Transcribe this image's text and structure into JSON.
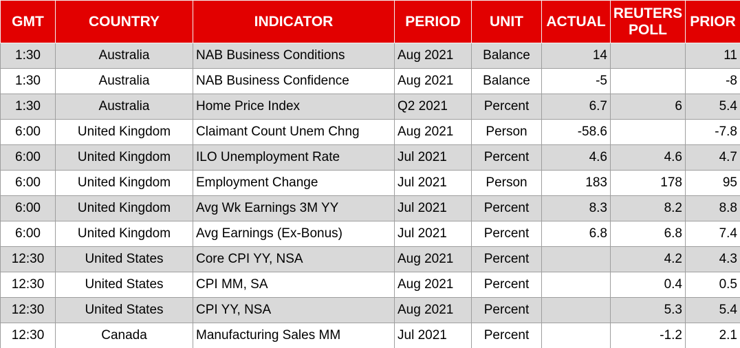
{
  "table": {
    "header": [
      "GMT",
      "COUNTRY",
      "INDICATOR",
      "PERIOD",
      "UNIT",
      "ACTUAL",
      "REUTERS POLL",
      "PRIOR"
    ],
    "rows": [
      [
        "1:30",
        "Australia",
        "NAB Business Conditions",
        "Aug 2021",
        "Balance",
        "14",
        null,
        "11"
      ],
      [
        "1:30",
        "Australia",
        "NAB Business Confidence",
        "Aug 2021",
        "Balance",
        "-5",
        null,
        "-8"
      ],
      [
        "1:30",
        "Australia",
        "Home Price Index",
        "Q2 2021",
        "Percent",
        "6.7",
        "6",
        "5.4"
      ],
      [
        "6:00",
        "United Kingdom",
        "Claimant Count Unem Chng",
        "Aug 2021",
        "Person",
        "-58.6",
        null,
        "-7.8"
      ],
      [
        "6:00",
        "United Kingdom",
        "ILO Unemployment Rate",
        "Jul 2021",
        "Percent",
        "4.6",
        "4.6",
        "4.7"
      ],
      [
        "6:00",
        "United Kingdom",
        "Employment Change",
        "Jul 2021",
        "Person",
        "183",
        "178",
        "95"
      ],
      [
        "6:00",
        "United Kingdom",
        "Avg Wk Earnings 3M YY",
        "Jul 2021",
        "Percent",
        "8.3",
        "8.2",
        "8.8"
      ],
      [
        "6:00",
        "United Kingdom",
        "Avg Earnings (Ex-Bonus)",
        "Jul 2021",
        "Percent",
        "6.8",
        "6.8",
        "7.4"
      ],
      [
        "12:30",
        "United States",
        "Core CPI YY, NSA",
        "Aug 2021",
        "Percent",
        null,
        "4.2",
        "4.3"
      ],
      [
        "12:30",
        "United States",
        "CPI MM, SA",
        "Aug 2021",
        "Percent",
        null,
        "0.4",
        "0.5"
      ],
      [
        "12:30",
        "United States",
        "CPI YY, NSA",
        "Aug 2021",
        "Percent",
        null,
        "5.3",
        "5.4"
      ],
      [
        "12:30",
        "Canada",
        "Manufacturing Sales MM",
        "Jul 2021",
        "Percent",
        null,
        "-1.2",
        "2.1"
      ]
    ]
  }
}
